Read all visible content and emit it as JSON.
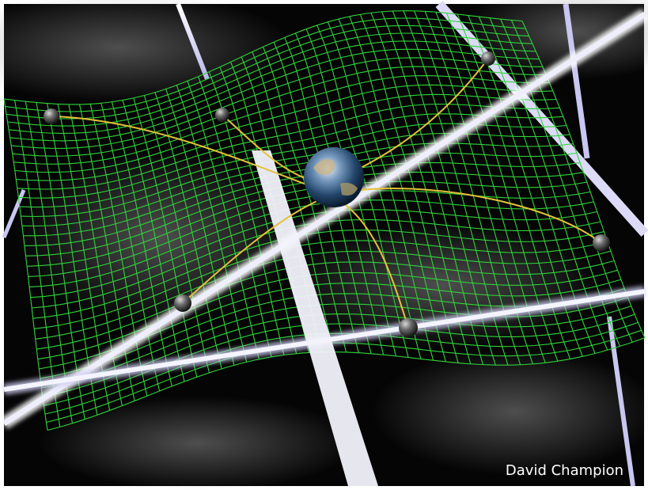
{
  "credit": "David Champion"
}
